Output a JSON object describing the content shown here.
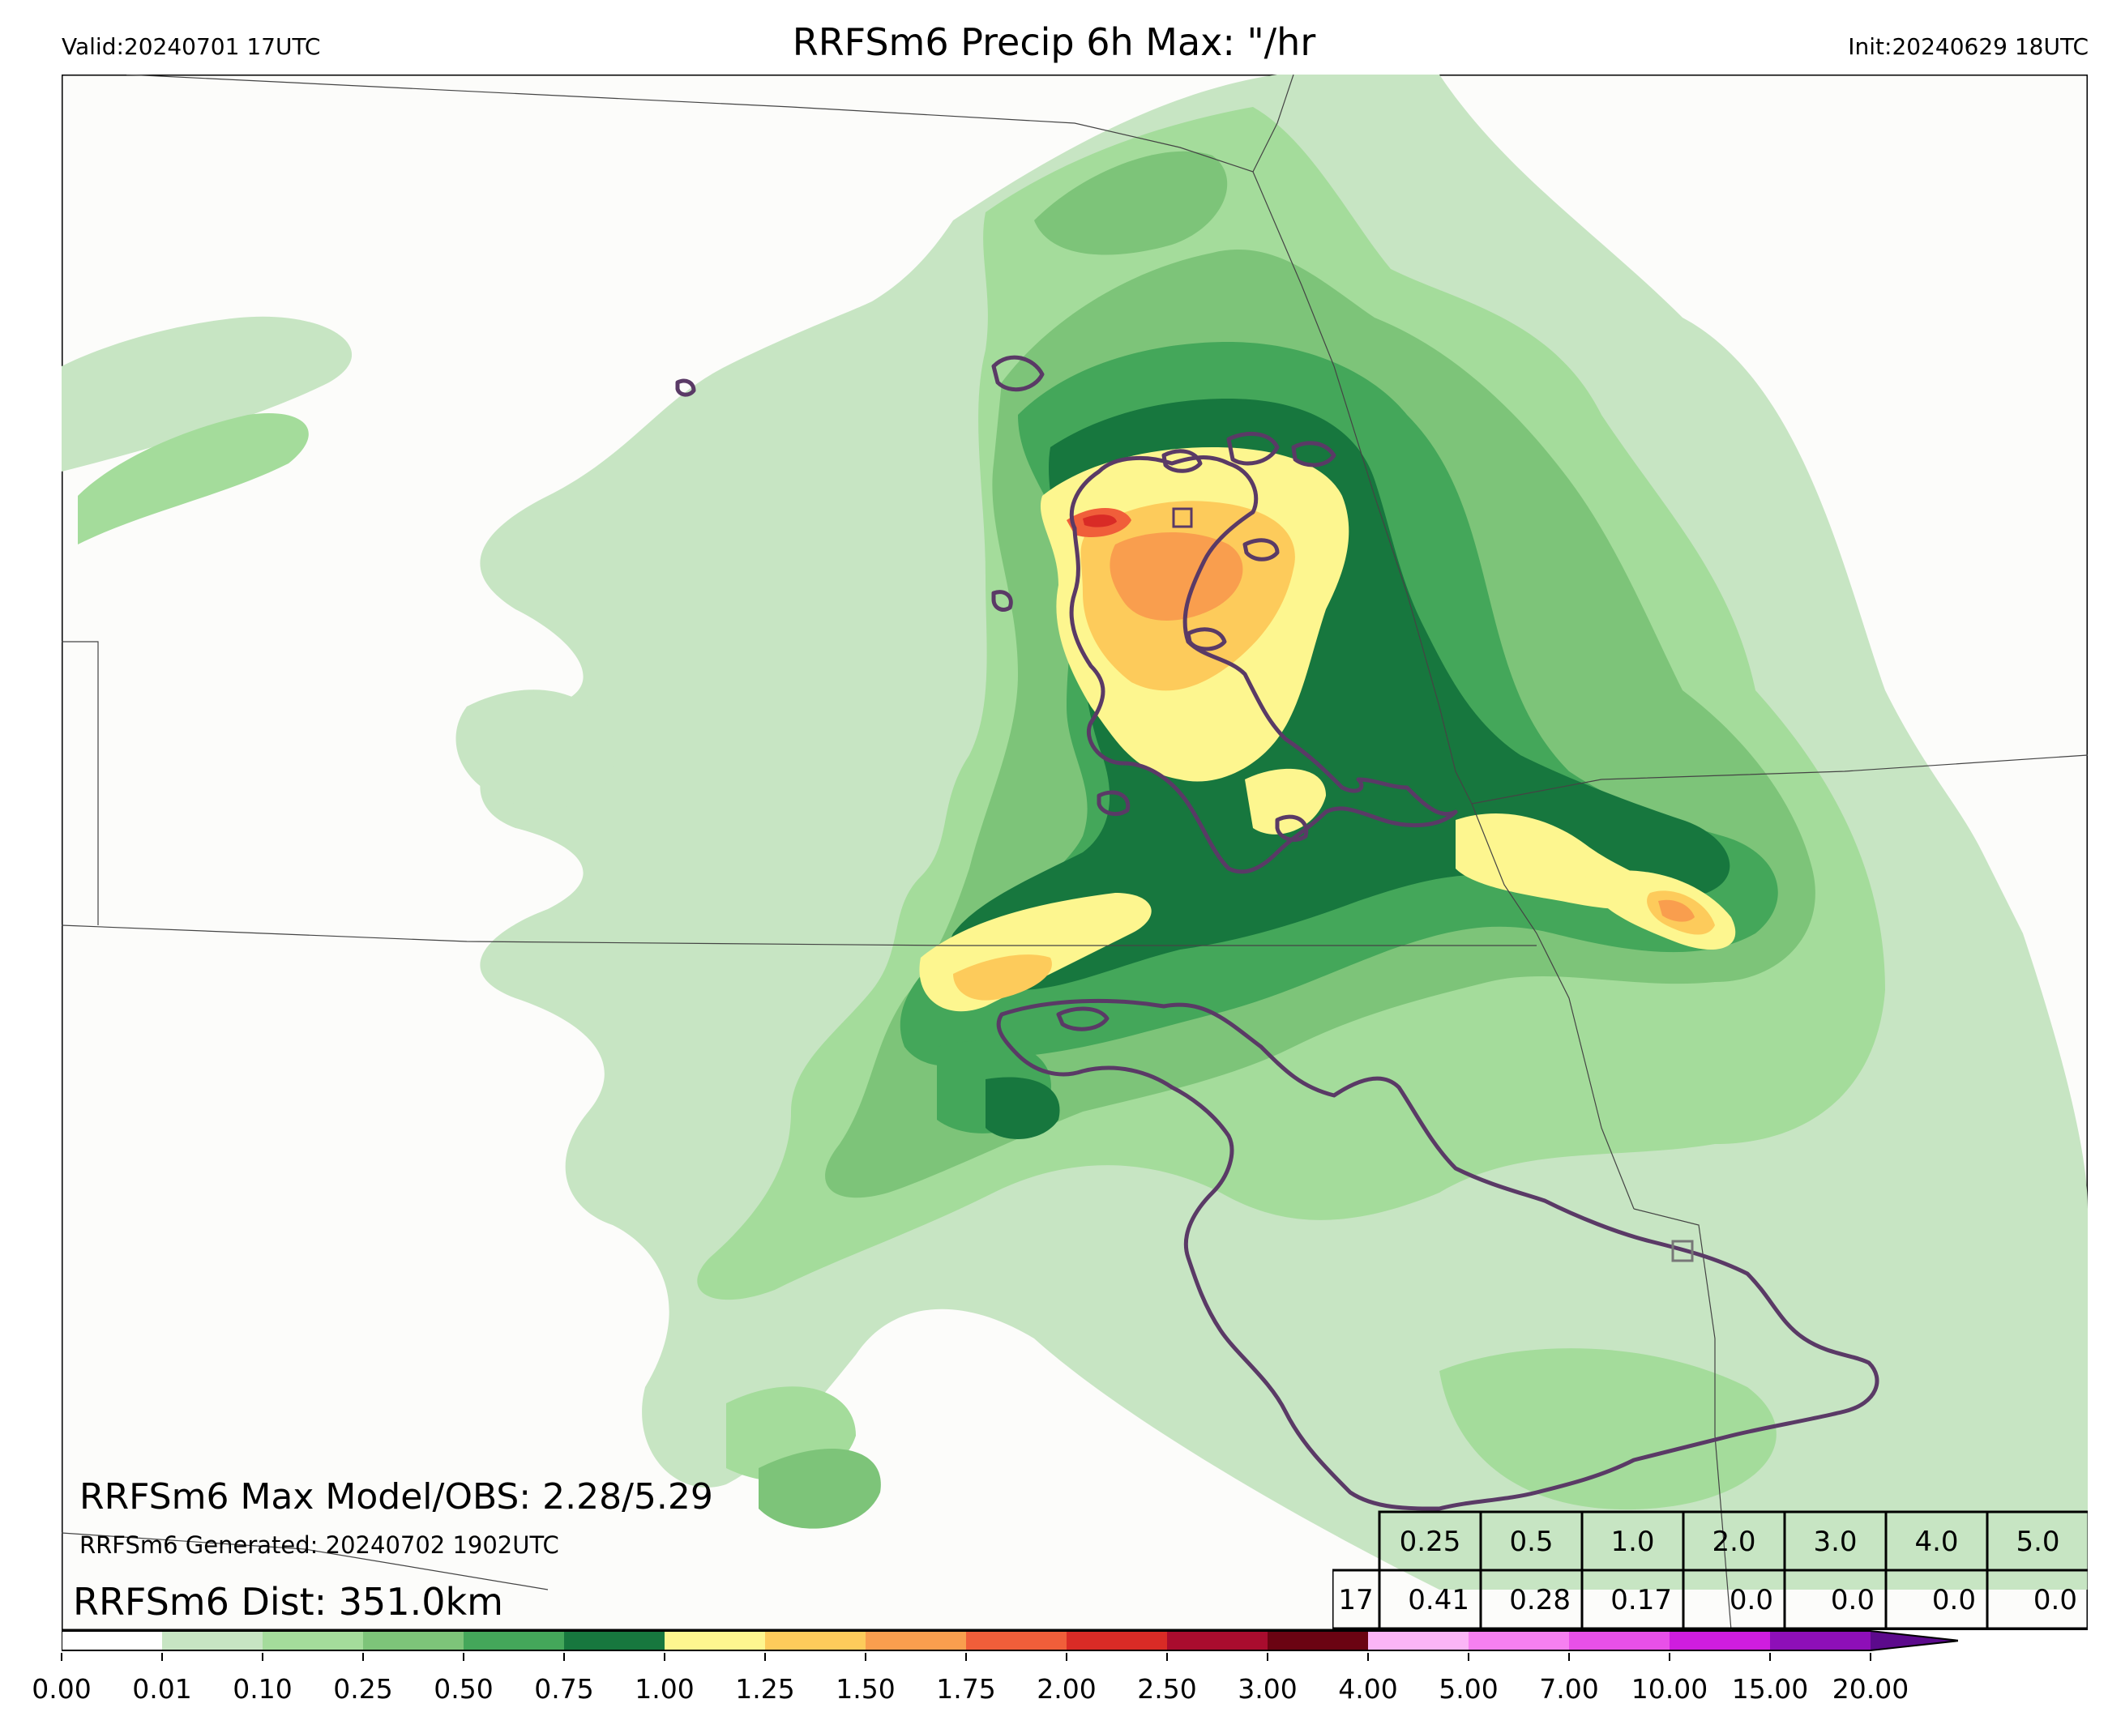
{
  "header": {
    "valid_text": "Valid:20240701 17UTC",
    "title": "RRFSm6 Precip 6h Max: \"/hr",
    "init_text": "Init:20240629 18UTC"
  },
  "overlay": {
    "max_line": "RRFSm6 Max Model/OBS: 2.28/5.29",
    "generated_line": "RRFSm6 Generated: 20240702 1902UTC",
    "dist_line": "RRFSm6 Dist: 351.0km"
  },
  "stats_table": {
    "row_label": "17",
    "thresholds": [
      "0.25",
      "0.5",
      "1.0",
      "2.0",
      "3.0",
      "4.0",
      "5.0"
    ],
    "values": [
      "0.41",
      "0.28",
      "0.17",
      "0.0",
      "0.0",
      "0.0",
      "0.0"
    ]
  },
  "colorbar": {
    "ticks": [
      "0.00",
      "0.01",
      "0.10",
      "0.25",
      "0.50",
      "0.75",
      "1.00",
      "1.25",
      "1.50",
      "1.75",
      "2.00",
      "2.50",
      "3.00",
      "4.00",
      "5.00",
      "7.00",
      "10.00",
      "15.00",
      "20.00"
    ],
    "colors": [
      "#ffffff",
      "#c7e5c3",
      "#a4dc9b",
      "#7dc479",
      "#44a75a",
      "#17773e",
      "#fdf68f",
      "#fdcb5b",
      "#f99e4e",
      "#f05e3a",
      "#d92b26",
      "#a90c2e",
      "#6b0312",
      "#fbb5f6",
      "#f680f0",
      "#e850e8",
      "#cf1ddf",
      "#8e0fb8",
      "#5c0a8c"
    ]
  },
  "map_colors": {
    "background": "#fcfcfa",
    "outline": "#5a3a66",
    "state_line": "#444444"
  }
}
